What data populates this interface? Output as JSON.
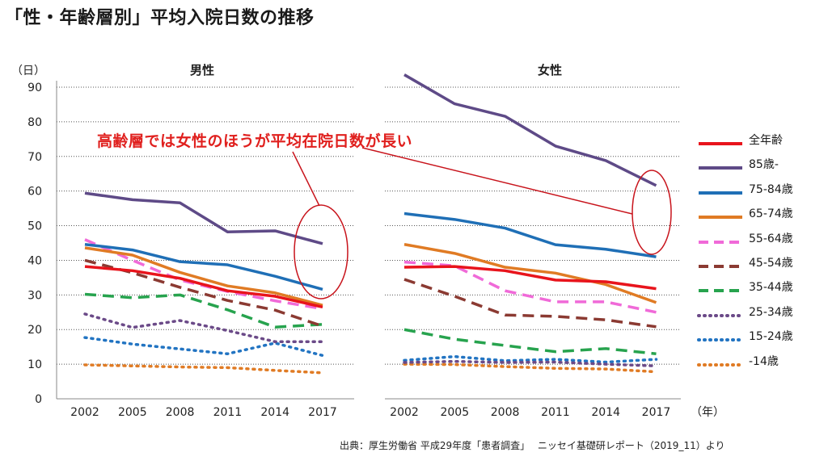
{
  "title": "「性・年齢層別」平均入院日数の推移",
  "annotation": "高齢層では女性のほうが平均在院日数が長い",
  "source": "出典：厚生労働省 平成29年度「患者調査」　 ニッセイ基礎研レポート（2019_11）より",
  "y_unit": "（日）",
  "x_unit": "（年）",
  "chart_data": [
    {
      "type": "line",
      "title": "男性",
      "x": [
        "2002",
        "2005",
        "2008",
        "2011",
        "2014",
        "2017"
      ],
      "ylim": [
        0,
        90
      ],
      "yticks": [
        0,
        10,
        20,
        30,
        40,
        50,
        60,
        70,
        80,
        90
      ],
      "grid": true,
      "series": [
        {
          "name": "全年齢",
          "values": [
            38.2,
            37.0,
            34.8,
            31.2,
            29.6,
            26.5
          ]
        },
        {
          "name": "85歳-",
          "values": [
            59.4,
            57.5,
            56.6,
            48.2,
            48.5,
            44.8
          ]
        },
        {
          "name": "75-84歳",
          "values": [
            44.6,
            43.0,
            39.6,
            38.7,
            35.4,
            31.6
          ]
        },
        {
          "name": "65-74歳",
          "values": [
            43.6,
            41.5,
            36.5,
            32.6,
            30.6,
            27.0
          ]
        },
        {
          "name": "55-64歳",
          "values": [
            46.0,
            40.0,
            34.3,
            31.0,
            28.3,
            26.0
          ]
        },
        {
          "name": "45-54歳",
          "values": [
            40.0,
            36.4,
            32.2,
            28.4,
            25.6,
            21.0
          ]
        },
        {
          "name": "35-44歳",
          "values": [
            30.2,
            29.2,
            30.0,
            25.7,
            20.7,
            21.5
          ]
        },
        {
          "name": "25-34歳",
          "values": [
            24.5,
            20.6,
            22.6,
            19.7,
            16.5,
            16.5
          ]
        },
        {
          "name": "15-24歳",
          "values": [
            17.7,
            15.8,
            14.4,
            13.0,
            16.1,
            12.5
          ]
        },
        {
          "name": "-14歳",
          "values": [
            9.8,
            9.5,
            9.2,
            9.0,
            8.2,
            7.5
          ]
        }
      ]
    },
    {
      "type": "line",
      "title": "女性",
      "x": [
        "2002",
        "2005",
        "2008",
        "2011",
        "2014",
        "2017"
      ],
      "ylim": [
        0,
        90
      ],
      "yticks": [
        0,
        10,
        20,
        30,
        40,
        50,
        60,
        70,
        80,
        90
      ],
      "grid": true,
      "series": [
        {
          "name": "全年齢",
          "values": [
            38.0,
            38.2,
            37.0,
            34.3,
            33.8,
            31.8
          ]
        },
        {
          "name": "85歳-",
          "values": [
            93.6,
            85.2,
            81.6,
            73.0,
            68.8,
            61.6
          ]
        },
        {
          "name": "75-84歳",
          "values": [
            53.5,
            51.8,
            49.3,
            44.5,
            43.2,
            41.0
          ]
        },
        {
          "name": "65-74歳",
          "values": [
            44.6,
            42.0,
            38.0,
            36.3,
            33.0,
            27.8
          ]
        },
        {
          "name": "55-64歳",
          "values": [
            39.5,
            38.4,
            31.2,
            28.0,
            28.0,
            25.0
          ]
        },
        {
          "name": "45-54歳",
          "values": [
            34.5,
            29.6,
            24.2,
            23.8,
            22.8,
            20.8
          ]
        },
        {
          "name": "35-44歳",
          "values": [
            20.0,
            17.2,
            15.4,
            13.6,
            14.5,
            13.0
          ]
        },
        {
          "name": "25-34歳",
          "values": [
            10.5,
            10.8,
            10.5,
            10.6,
            10.0,
            9.5
          ]
        },
        {
          "name": "15-24歳",
          "values": [
            11.1,
            12.2,
            11.0,
            11.4,
            10.6,
            11.4
          ]
        },
        {
          "name": "-14歳",
          "values": [
            10.0,
            9.9,
            9.3,
            8.8,
            8.6,
            7.8
          ]
        }
      ]
    }
  ],
  "series_style": [
    {
      "name": "全年齢",
      "color": "#e8141c",
      "dash": "solid"
    },
    {
      "name": "85歳-",
      "color": "#5e4a87",
      "dash": "solid"
    },
    {
      "name": "75-84歳",
      "color": "#1f6fb6",
      "dash": "solid"
    },
    {
      "name": "65-74歳",
      "color": "#e07b24",
      "dash": "solid"
    },
    {
      "name": "55-64歳",
      "color": "#f06ad8",
      "dash": "dashed"
    },
    {
      "name": "45-54歳",
      "color": "#8b3a32",
      "dash": "dashed"
    },
    {
      "name": "35-44歳",
      "color": "#27a34e",
      "dash": "dashed"
    },
    {
      "name": "25-34歳",
      "color": "#6b4a88",
      "dash": "dotted"
    },
    {
      "name": "15-24歳",
      "color": "#2274c2",
      "dash": "dotted"
    },
    {
      "name": "-14歳",
      "color": "#e07b24",
      "dash": "dotted"
    }
  ]
}
